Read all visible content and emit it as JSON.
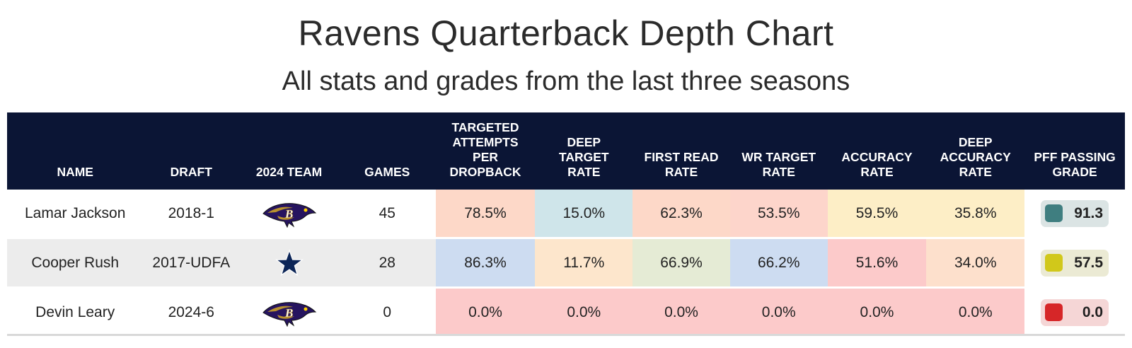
{
  "title": "Ravens Quarterback Depth Chart",
  "subtitle": "All stats and grades from the last three seasons",
  "icons": {
    "ravens": "ravens-logo-icon",
    "cowboys": "cowboys-star-icon"
  },
  "chart_data": {
    "type": "table",
    "columns": [
      "NAME",
      "DRAFT",
      "2024 TEAM",
      "GAMES",
      "TARGETED ATTEMPTS PER DROPBACK",
      "DEEP TARGET RATE",
      "FIRST READ RATE",
      "WR TARGET RATE",
      "ACCURACY RATE",
      "DEEP ACCURACY RATE",
      "PFF PASSING GRADE"
    ],
    "rows": [
      {
        "name": "Lamar Jackson",
        "draft": "2018-1",
        "team_icon": "ravens-logo-icon",
        "games": "45",
        "stats": [
          {
            "value": "78.5%",
            "color": "#fdd8c8"
          },
          {
            "value": "15.0%",
            "color": "#cfe5ea"
          },
          {
            "value": "62.3%",
            "color": "#fdd8c8"
          },
          {
            "value": "53.5%",
            "color": "#fdd5cb"
          },
          {
            "value": "59.5%",
            "color": "#fdeec6"
          },
          {
            "value": "35.8%",
            "color": "#fdeec6"
          }
        ],
        "grade": {
          "value": "91.3",
          "swatch": "#3f7e80",
          "bg": "#dbe4e4"
        }
      },
      {
        "name": "Cooper Rush",
        "draft": "2017-UDFA",
        "team_icon": "cowboys-star-icon",
        "games": "28",
        "stats": [
          {
            "value": "86.3%",
            "color": "#cddcf1"
          },
          {
            "value": "11.7%",
            "color": "#fde6cc"
          },
          {
            "value": "66.9%",
            "color": "#e5ebd5"
          },
          {
            "value": "66.2%",
            "color": "#cddcf1"
          },
          {
            "value": "51.6%",
            "color": "#fccaca"
          },
          {
            "value": "34.0%",
            "color": "#fde0cc"
          }
        ],
        "grade": {
          "value": "57.5",
          "swatch": "#d1c81a",
          "bg": "#ebead4"
        }
      },
      {
        "name": "Devin Leary",
        "draft": "2024-6",
        "team_icon": "ravens-logo-icon",
        "games": "0",
        "stats": [
          {
            "value": "0.0%",
            "color": "#fccaca"
          },
          {
            "value": "0.0%",
            "color": "#fccaca"
          },
          {
            "value": "0.0%",
            "color": "#fccaca"
          },
          {
            "value": "0.0%",
            "color": "#fccaca"
          },
          {
            "value": "0.0%",
            "color": "#fccaca"
          },
          {
            "value": "0.0%",
            "color": "#fccaca"
          }
        ],
        "grade": {
          "value": "0.0",
          "swatch": "#d62628",
          "bg": "#f5d6d6"
        }
      }
    ]
  }
}
